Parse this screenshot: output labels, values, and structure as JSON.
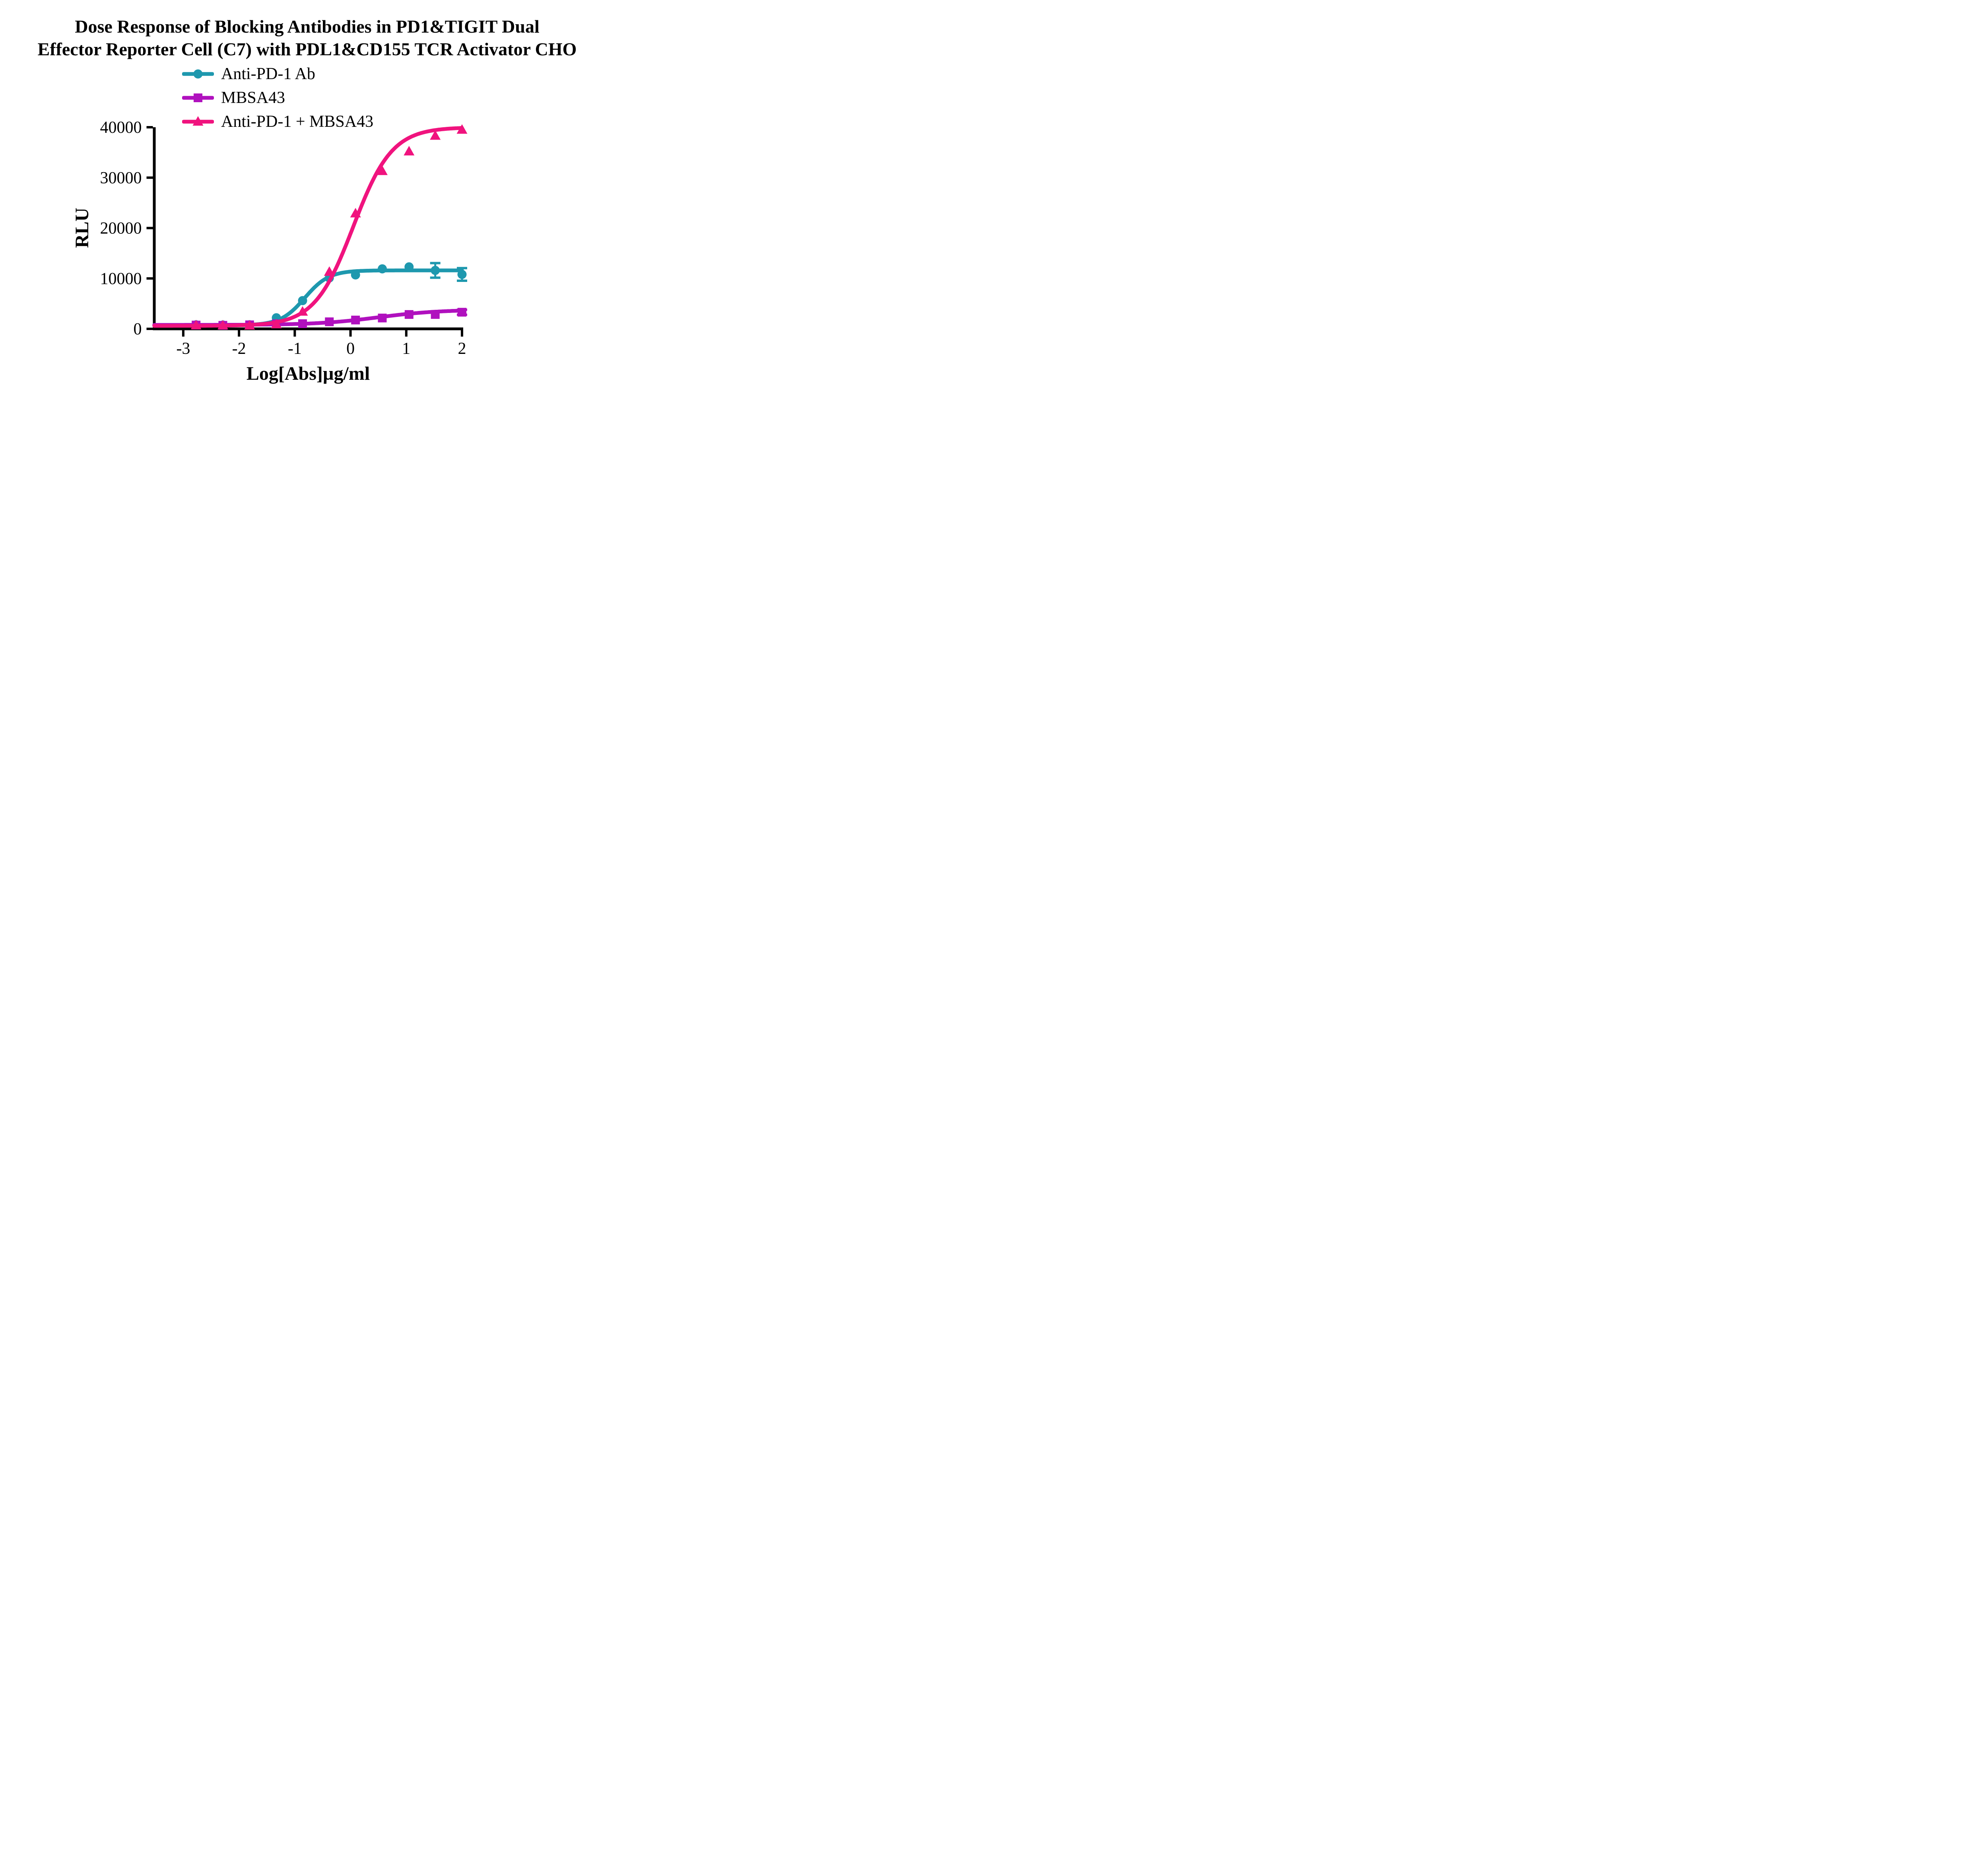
{
  "chart_data": {
    "type": "scatter",
    "title_lines": [
      "Dose Response of Blocking Antibodies in PD1&TIGIT Dual",
      "Effector Reporter Cell (C7) with PDL1&CD155 TCR Activator CHO"
    ],
    "xlabel": "Log[Abs]µg/ml",
    "ylabel": "RLU",
    "xlim": [
      -3.52,
      2.0
    ],
    "ylim": [
      0,
      40000
    ],
    "xticks": [
      -3,
      -2,
      -1,
      0,
      1,
      2
    ],
    "yticks": [
      0,
      10000,
      20000,
      30000,
      40000
    ],
    "background_color": "#ffffff",
    "axis_color": "#000000",
    "legend_position": "top-left-inside",
    "grid": false,
    "series": [
      {
        "name": "Anti-PD-1 Ab",
        "color": "#1E98AE",
        "marker": "circle",
        "x": [
          -2.77,
          -2.29,
          -1.81,
          -1.33,
          -0.86,
          -0.38,
          0.09,
          0.57,
          1.05,
          1.52,
          2.0
        ],
        "y": [
          800,
          760,
          810,
          2200,
          5600,
          10100,
          10700,
          11900,
          12300,
          11600,
          10800
        ],
        "err": [
          0,
          0,
          0,
          0,
          0,
          0,
          0,
          0,
          0,
          1450,
          1250
        ],
        "fit": {
          "bottom": 700,
          "top": 11600,
          "logec50": -0.82,
          "hill": 2.0
        }
      },
      {
        "name": "MBSA43",
        "color": "#B011BE",
        "marker": "square",
        "x": [
          -2.77,
          -2.29,
          -1.81,
          -1.33,
          -0.86,
          -0.38,
          0.09,
          0.57,
          1.05,
          1.52,
          2.0
        ],
        "y": [
          750,
          700,
          800,
          1000,
          1030,
          1400,
          1750,
          2150,
          2850,
          2850,
          3300
        ],
        "err": [
          0,
          0,
          0,
          0,
          0,
          0,
          0,
          0,
          0,
          0,
          500
        ],
        "fit": {
          "bottom": 780,
          "top": 3800,
          "logec50": 0.5,
          "hill": 0.8
        }
      },
      {
        "name": "Anti-PD-1 + MBSA43",
        "color": "#F0137E",
        "marker": "triangle",
        "x": [
          -2.77,
          -2.29,
          -1.81,
          -1.33,
          -0.86,
          -0.38,
          0.09,
          0.57,
          1.05,
          1.52,
          2.0
        ],
        "y": [
          700,
          680,
          650,
          900,
          3400,
          11300,
          22900,
          31300,
          35200,
          38300,
          39500
        ],
        "err": [
          0,
          0,
          0,
          0,
          0,
          0,
          0,
          0,
          0,
          0,
          0
        ],
        "fit": {
          "bottom": 600,
          "top": 40000,
          "logec50": 0.05,
          "hill": 1.25
        }
      }
    ]
  }
}
